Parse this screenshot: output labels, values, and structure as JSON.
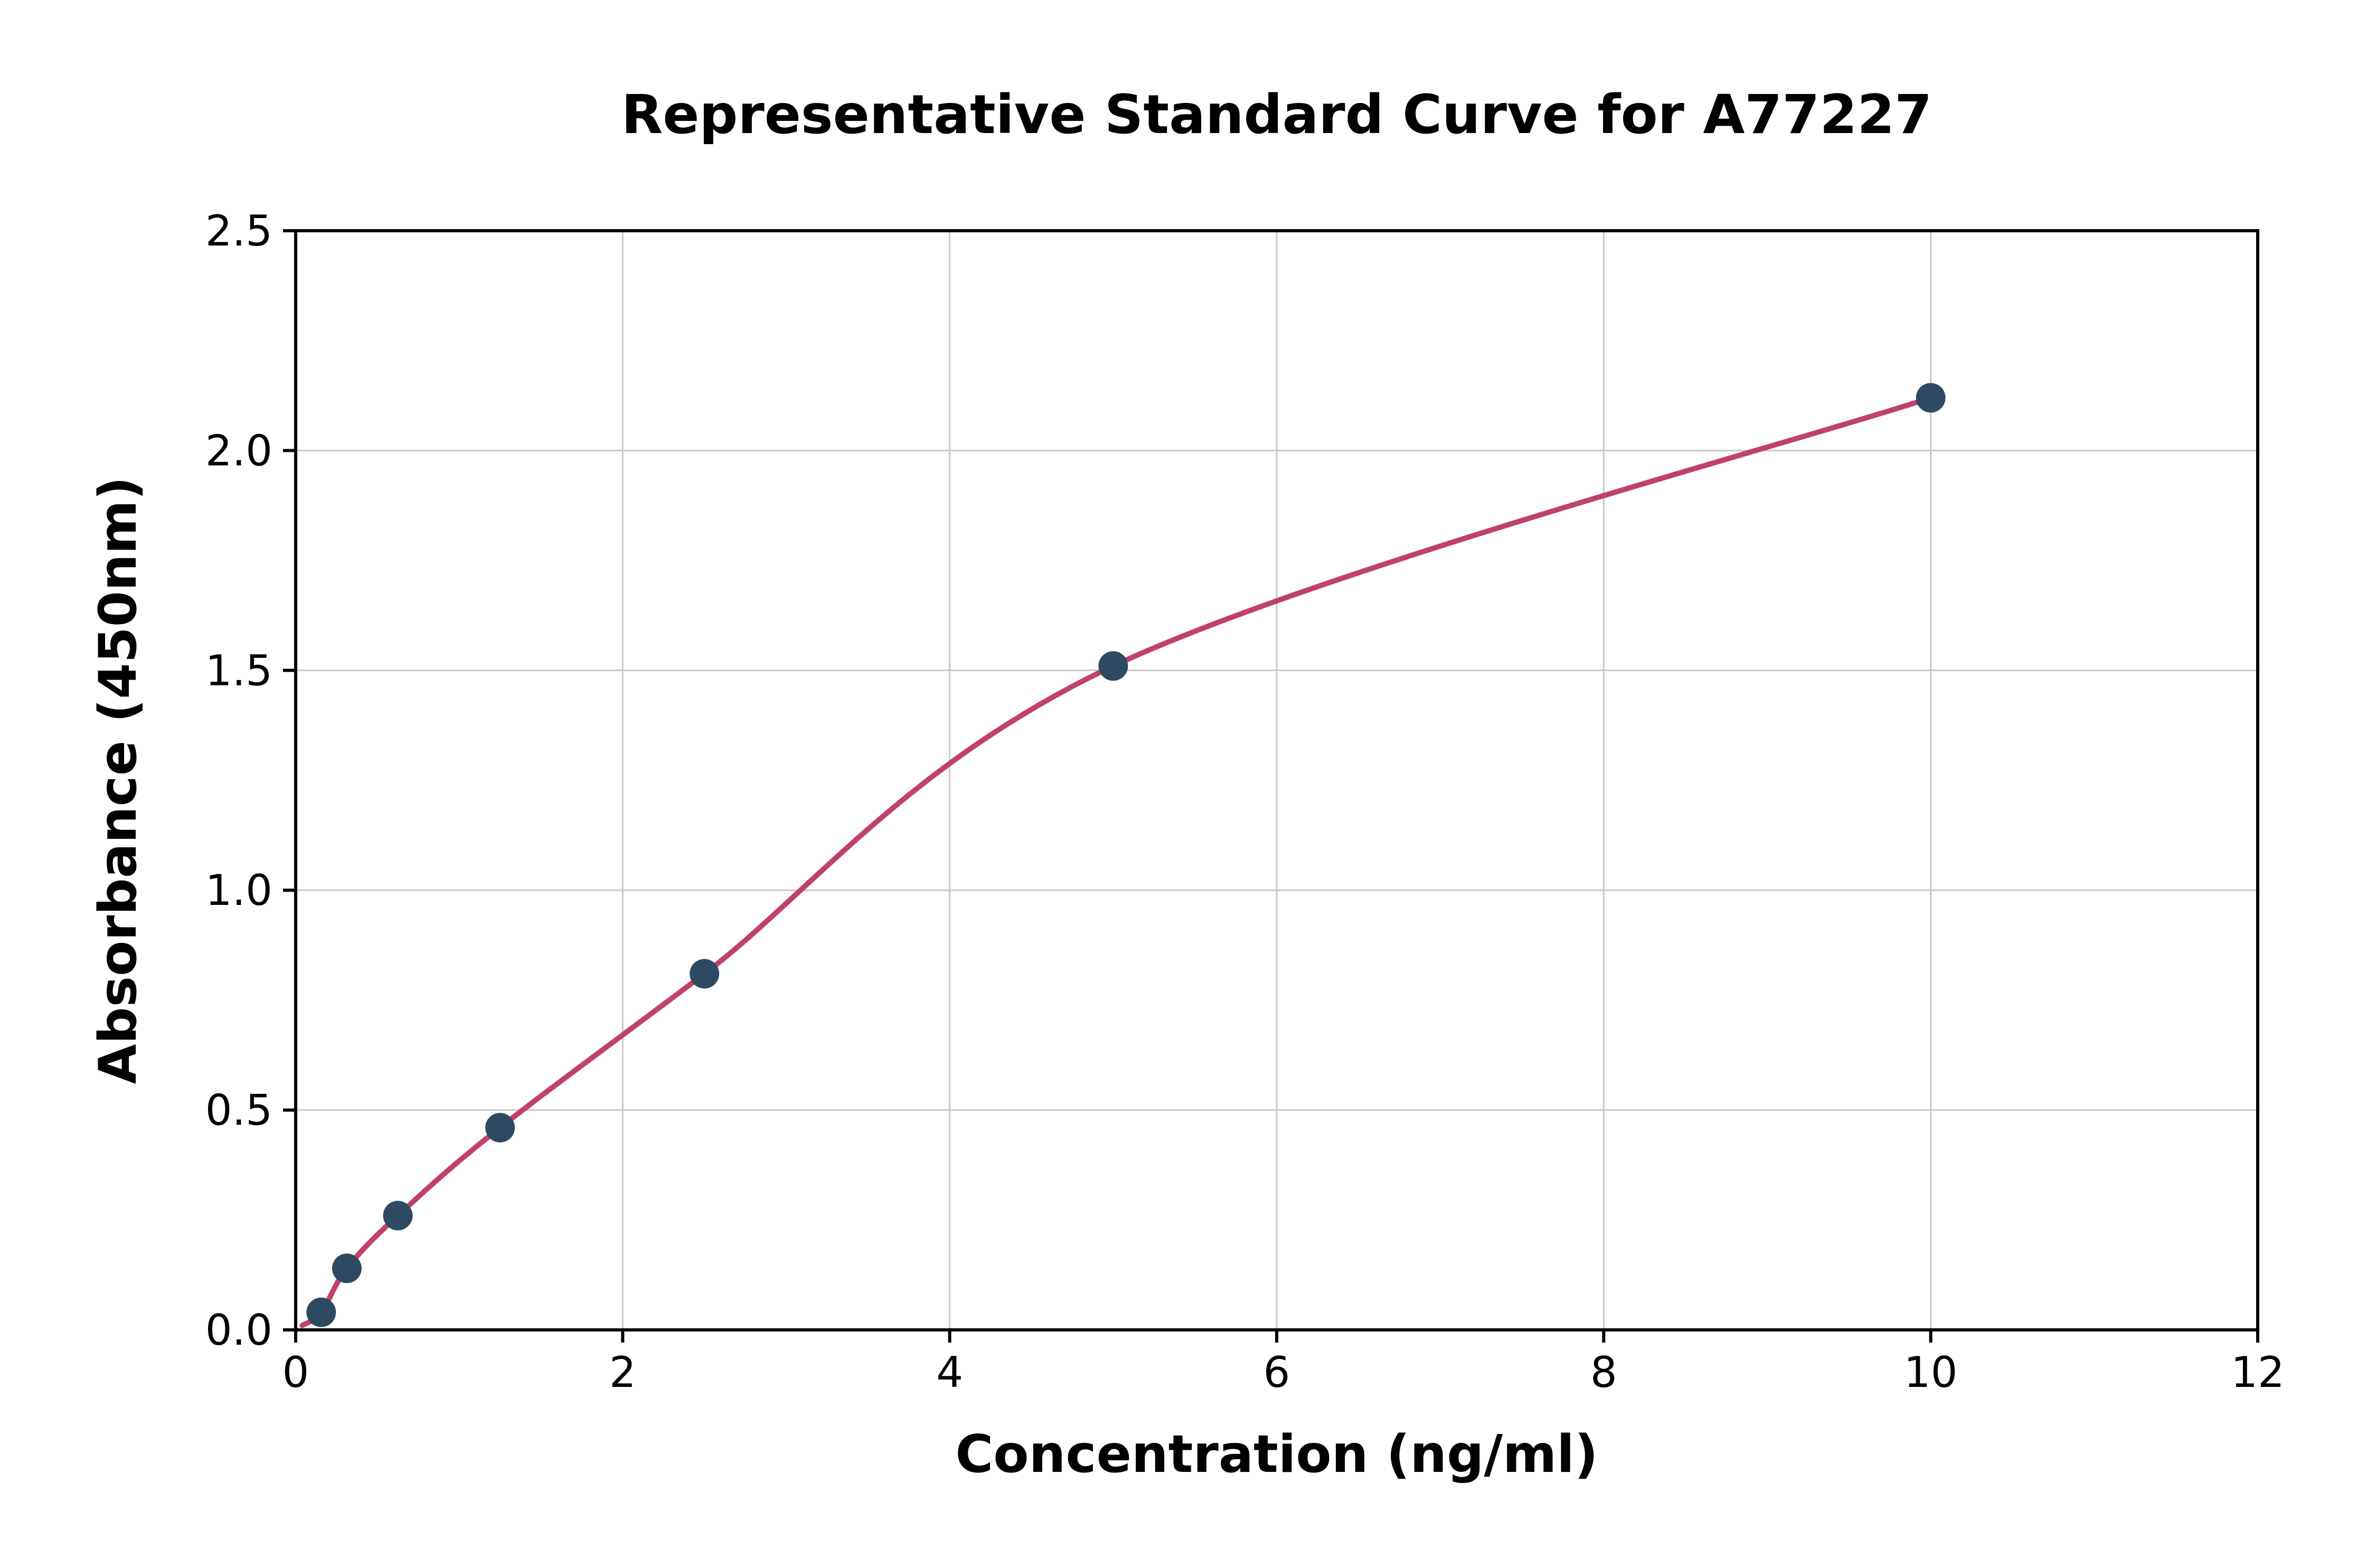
{
  "figure": {
    "background": "#ffffff"
  },
  "chart_data": {
    "type": "scatter",
    "title": "Representative Standard Curve for A77227",
    "xlabel": "Concentration (ng/ml)",
    "ylabel": "Absorbance (450nm)",
    "xlim": [
      0,
      12
    ],
    "ylim": [
      0,
      2.5
    ],
    "x_ticks": [
      0,
      2,
      4,
      6,
      8,
      10,
      12
    ],
    "x_tick_labels": [
      "0",
      "2",
      "4",
      "6",
      "8",
      "10",
      "12"
    ],
    "y_ticks": [
      0,
      0.5,
      1,
      1.5,
      2,
      2.5
    ],
    "y_tick_labels": [
      "0.0",
      "0.5",
      "1.0",
      "1.5",
      "2.0",
      "2.5"
    ],
    "grid": {
      "show": true,
      "color": "#c9c9c9"
    },
    "legend_position": "none",
    "points": [
      {
        "x": 0.156,
        "y": 0.04
      },
      {
        "x": 0.313,
        "y": 0.14
      },
      {
        "x": 0.625,
        "y": 0.26
      },
      {
        "x": 1.25,
        "y": 0.46
      },
      {
        "x": 2.5,
        "y": 0.81
      },
      {
        "x": 5,
        "y": 1.51
      },
      {
        "x": 10,
        "y": 2.12
      }
    ],
    "point_style": {
      "color": "#2e4a62",
      "radius": 28
    },
    "fit_curve": {
      "style": "smooth-through-points",
      "start_anchor": {
        "x": 0.04,
        "y": 0.01
      },
      "color": "#c0416b",
      "width": 10
    },
    "axis_color": "#000000"
  }
}
